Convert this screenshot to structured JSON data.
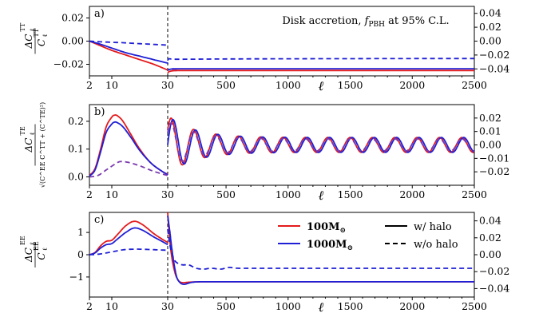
{
  "figure": {
    "annotation": "Disk accretion, f_PBH at 95% C.L.",
    "annotation_main": "Disk accretion, ",
    "annotation_f": "f",
    "annotation_sub": "PBH",
    "annotation_tail": " at 95% C.L.",
    "x_axis_symbol": "ℓ",
    "colors": {
      "m100": "#e41a1c",
      "m1000": "#1f1fd6",
      "axis": "#000000"
    }
  },
  "legend": {
    "m100_label": "100M",
    "m1000_label": "1000M",
    "sun_symbol": "⊙",
    "with_halo": "w/ halo",
    "without_halo": "w/o halo"
  },
  "chart_data": [
    {
      "type": "line",
      "panel": "a)",
      "ylabel_num": "ΔC",
      "ylabel_den": "C",
      "ylabel_sup": "TT",
      "ylabel_sub": "ℓ",
      "x_split": 30,
      "x_ticks_left": [
        2,
        10,
        30
      ],
      "x_ticks_right": [
        500,
        1000,
        1500,
        2000,
        2500
      ],
      "y_left": {
        "range": [
          -0.03,
          0.03
        ],
        "ticks": [
          "0.02",
          "0.00",
          "−0.02"
        ],
        "tick_values": [
          0.02,
          0.0,
          -0.02
        ]
      },
      "y_right": {
        "range": [
          -0.05,
          0.05
        ],
        "ticks": [
          "0.04",
          "0.02",
          "0.00",
          "−0.02",
          "−0.04"
        ],
        "tick_values": [
          0.04,
          0.02,
          0.0,
          -0.02,
          -0.04
        ]
      },
      "series": [
        {
          "name": "100M⊙ w/ halo",
          "color": "#e41a1c",
          "dash": false,
          "left": [
            [
              2,
              0
            ],
            [
              5,
              -0.003
            ],
            [
              10,
              -0.008
            ],
            [
              15,
              -0.012
            ],
            [
              20,
              -0.016
            ],
            [
              25,
              -0.02
            ],
            [
              30,
              -0.025
            ]
          ],
          "right": [
            [
              30,
              -0.046
            ],
            [
              40,
              -0.044
            ],
            [
              60,
              -0.043
            ],
            [
              100,
              -0.0425
            ],
            [
              300,
              -0.0423
            ],
            [
              2500,
              -0.0423
            ]
          ]
        },
        {
          "name": "1000M⊙ w/ halo",
          "color": "#1f1fd6",
          "dash": false,
          "left": [
            [
              2,
              0
            ],
            [
              5,
              -0.002
            ],
            [
              10,
              -0.006
            ],
            [
              15,
              -0.01
            ],
            [
              20,
              -0.013
            ],
            [
              25,
              -0.016
            ],
            [
              30,
              -0.019
            ]
          ],
          "right": [
            [
              30,
              -0.042
            ],
            [
              40,
              -0.041
            ],
            [
              60,
              -0.0402
            ],
            [
              100,
              -0.04
            ],
            [
              300,
              -0.0398
            ],
            [
              2500,
              -0.0398
            ]
          ]
        },
        {
          "name": "w/o halo",
          "color": "#1f1fd6",
          "dash": true,
          "left": [
            [
              2,
              0
            ],
            [
              5,
              -0.0005
            ],
            [
              10,
              -0.001
            ],
            [
              15,
              -0.0015
            ],
            [
              20,
              -0.0022
            ],
            [
              25,
              -0.0028
            ],
            [
              30,
              -0.0035
            ]
          ],
          "right": [
            [
              30,
              -0.028
            ],
            [
              40,
              -0.0255
            ],
            [
              80,
              -0.026
            ],
            [
              200,
              -0.026
            ],
            [
              800,
              -0.0255
            ],
            [
              2500,
              -0.025
            ]
          ]
        }
      ]
    },
    {
      "type": "line",
      "panel": "b)",
      "ylabel_num": "ΔC",
      "ylabel_sup": "TE",
      "ylabel_sub": "ℓ",
      "ylabel_den": "√(C^EE C^TT + (C^TE)²)",
      "x_split": 30,
      "x_ticks_left": [
        2,
        10,
        30
      ],
      "x_ticks_right": [
        500,
        1000,
        1500,
        2000,
        2500
      ],
      "y_left": {
        "range": [
          -0.03,
          0.26
        ],
        "ticks": [
          "0.2",
          "0.1",
          "0.0"
        ],
        "tick_values": [
          0.2,
          0.1,
          0.0
        ]
      },
      "y_right": {
        "range": [
          -0.03,
          0.03
        ],
        "ticks": [
          "0.02",
          "0.01",
          "0.00",
          "−0.01",
          "−0.02"
        ],
        "tick_values": [
          0.02,
          0.01,
          0.0,
          -0.01,
          -0.02
        ]
      },
      "series": [
        {
          "name": "100M⊙ w/ halo",
          "color": "#e41a1c",
          "dash": false,
          "left": [
            [
              2,
              0.005
            ],
            [
              4,
              0.03
            ],
            [
              6,
              0.1
            ],
            [
              8,
              0.18
            ],
            [
              10,
              0.215
            ],
            [
              11,
              0.222
            ],
            [
              12,
              0.22
            ],
            [
              14,
              0.2
            ],
            [
              17,
              0.15
            ],
            [
              20,
              0.1
            ],
            [
              24,
              0.05
            ],
            [
              28,
              0.02
            ],
            [
              30,
              0.01
            ]
          ],
          "right_osc": {
            "start": 30,
            "amp0": 0.022,
            "decay": 0.0006,
            "base_amp": 0.0055,
            "period": 180,
            "phase": 60,
            "offset": 0.0
          }
        },
        {
          "name": "1000M⊙ w/ halo",
          "color": "#1f1fd6",
          "dash": false,
          "left": [
            [
              2,
              0.003
            ],
            [
              4,
              0.025
            ],
            [
              6,
              0.09
            ],
            [
              8,
              0.16
            ],
            [
              10,
              0.19
            ],
            [
              11,
              0.197
            ],
            [
              12,
              0.195
            ],
            [
              14,
              0.18
            ],
            [
              17,
              0.14
            ],
            [
              20,
              0.095
            ],
            [
              24,
              0.05
            ],
            [
              28,
              0.02
            ],
            [
              30,
              0.008
            ]
          ],
          "right_osc": {
            "start": 30,
            "amp0": 0.022,
            "decay": 0.0006,
            "base_amp": 0.0055,
            "period": 180,
            "phase": 75,
            "offset": 0.0
          }
        },
        {
          "name": "w/o halo",
          "color": "#7a3ab0",
          "dash": true,
          "left": [
            [
              2,
              0.0
            ],
            [
              5,
              0.005
            ],
            [
              8,
              0.025
            ],
            [
              11,
              0.045
            ],
            [
              13,
              0.055
            ],
            [
              16,
              0.052
            ],
            [
              20,
              0.04
            ],
            [
              25,
              0.02
            ],
            [
              30,
              0.005
            ]
          ],
          "right_osc": {
            "start": 30,
            "amp0": 0.018,
            "decay": 0.0006,
            "base_amp": 0.0045,
            "period": 180,
            "phase": 60,
            "offset": 0.0
          }
        }
      ]
    },
    {
      "type": "line",
      "panel": "c)",
      "ylabel_num": "ΔC",
      "ylabel_den": "C",
      "ylabel_sup": "EE",
      "ylabel_sub": "ℓ",
      "x_split": 30,
      "x_ticks_left": [
        2,
        10,
        30
      ],
      "x_ticks_right": [
        500,
        1000,
        1500,
        2000,
        2500
      ],
      "y_left": {
        "range": [
          -1.9,
          1.9
        ],
        "ticks": [
          "1",
          "0",
          "−1"
        ],
        "tick_values": [
          1,
          0,
          -1
        ]
      },
      "y_right": {
        "range": [
          -0.05,
          0.05
        ],
        "ticks": [
          "0.04",
          "0.02",
          "0.00",
          "−0.02",
          "−0.04"
        ],
        "tick_values": [
          0.04,
          0.02,
          0.0,
          -0.02,
          -0.04
        ]
      },
      "series": [
        {
          "name": "100M⊙ w/ halo",
          "color": "#e41a1c",
          "dash": false,
          "left": [
            [
              2,
              0
            ],
            [
              4,
              0.1
            ],
            [
              6,
              0.4
            ],
            [
              8,
              0.6
            ],
            [
              10,
              0.65
            ],
            [
              12,
              0.9
            ],
            [
              15,
              1.3
            ],
            [
              18,
              1.5
            ],
            [
              21,
              1.35
            ],
            [
              25,
              0.95
            ],
            [
              28,
              0.7
            ],
            [
              30,
              0.55
            ]
          ],
          "right": [
            [
              30,
              0.05
            ],
            [
              40,
              0.03
            ],
            [
              60,
              0.0
            ],
            [
              90,
              -0.022
            ],
            [
              120,
              -0.031
            ],
            [
              150,
              -0.033
            ],
            [
              200,
              -0.0325
            ],
            [
              300,
              -0.032
            ],
            [
              500,
              -0.032
            ],
            [
              2500,
              -0.032
            ]
          ]
        },
        {
          "name": "1000M⊙ w/ halo",
          "color": "#1f1fd6",
          "dash": false,
          "left": [
            [
              2,
              0
            ],
            [
              4,
              0.08
            ],
            [
              6,
              0.3
            ],
            [
              8,
              0.45
            ],
            [
              10,
              0.5
            ],
            [
              12,
              0.7
            ],
            [
              15,
              1.0
            ],
            [
              18,
              1.2
            ],
            [
              21,
              1.1
            ],
            [
              25,
              0.8
            ],
            [
              28,
              0.6
            ],
            [
              30,
              0.45
            ]
          ],
          "right": [
            [
              30,
              0.046
            ],
            [
              45,
              0.03
            ],
            [
              70,
              0.0
            ],
            [
              100,
              -0.025
            ],
            [
              130,
              -0.033
            ],
            [
              160,
              -0.035
            ],
            [
              190,
              -0.034
            ],
            [
              230,
              -0.0325
            ],
            [
              300,
              -0.032
            ],
            [
              500,
              -0.032
            ],
            [
              2500,
              -0.032
            ]
          ]
        },
        {
          "name": "w/o halo",
          "color": "#1f1fd6",
          "dash": true,
          "left": [
            [
              2,
              0
            ],
            [
              5,
              0.02
            ],
            [
              8,
              0.08
            ],
            [
              11,
              0.15
            ],
            [
              14,
              0.22
            ],
            [
              18,
              0.25
            ],
            [
              22,
              0.24
            ],
            [
              26,
              0.22
            ],
            [
              30,
              0.2
            ]
          ],
          "right": [
            [
              30,
              0.03
            ],
            [
              50,
              0.01
            ],
            [
              80,
              -0.005
            ],
            [
              110,
              -0.01
            ],
            [
              150,
              -0.012
            ],
            [
              200,
              -0.012
            ],
            [
              260,
              -0.016
            ],
            [
              320,
              -0.017
            ],
            [
              380,
              -0.016
            ],
            [
              460,
              -0.017
            ],
            [
              520,
              -0.015
            ],
            [
              600,
              -0.016
            ],
            [
              800,
              -0.016
            ],
            [
              1200,
              -0.016
            ],
            [
              2500,
              -0.016
            ]
          ]
        }
      ]
    }
  ]
}
